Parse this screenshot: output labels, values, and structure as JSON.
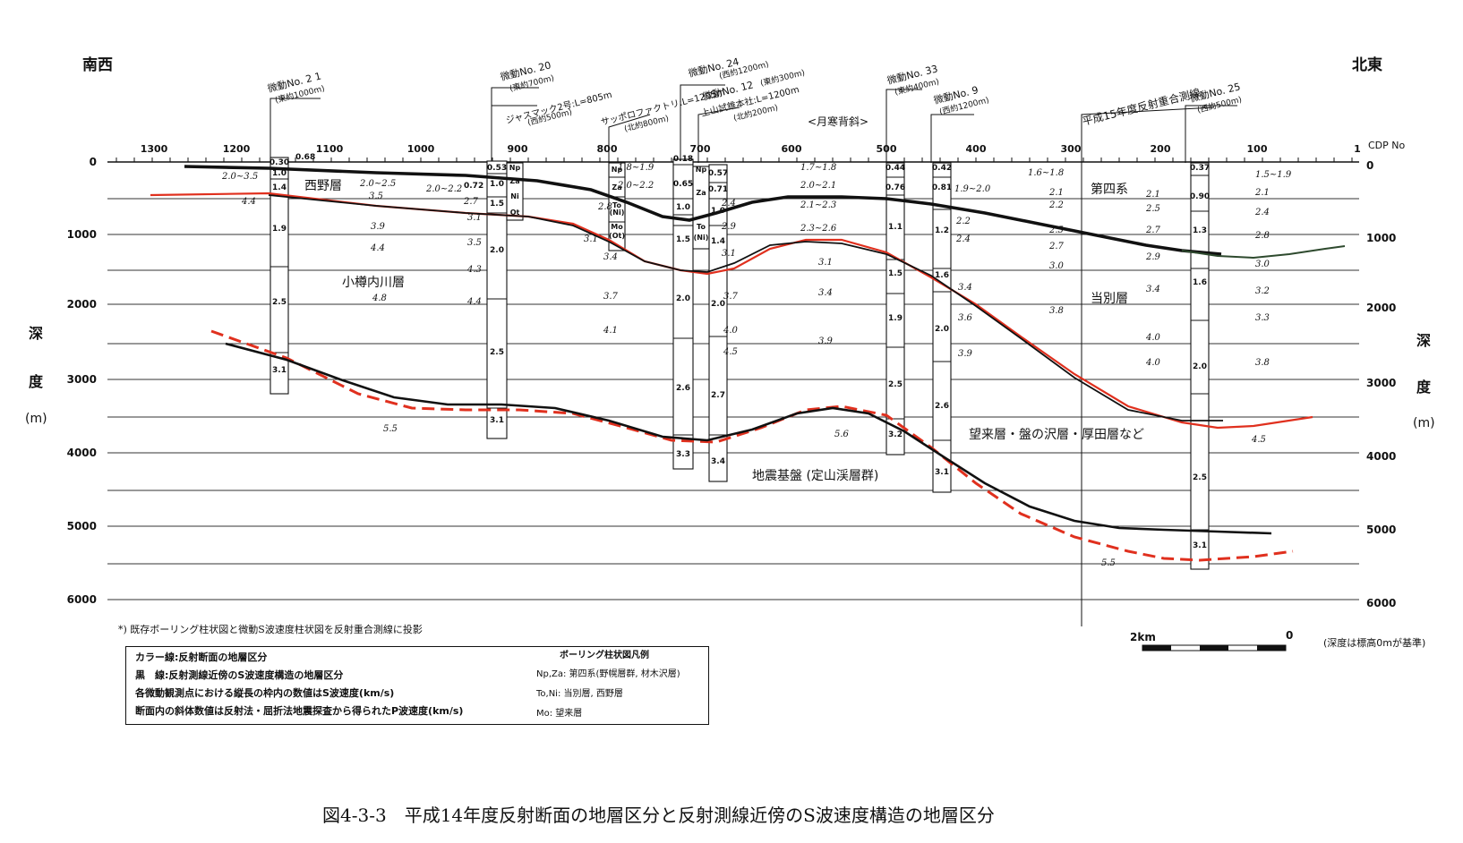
{
  "header": {
    "southwest": "南西",
    "northeast": "北東",
    "cdp_label": "CDP No"
  },
  "axes": {
    "depth_label_chars": [
      "深",
      "度"
    ],
    "depth_unit": "(m)",
    "depth_ticks": [
      "0",
      "1000",
      "2000",
      "3000",
      "4000",
      "5000",
      "6000"
    ],
    "cdp_ticks": [
      "1300",
      "1200",
      "1100",
      "1000",
      "900",
      "800",
      "700",
      "600",
      "500",
      "400",
      "300",
      "200",
      "100",
      "1"
    ]
  },
  "stations": [
    {
      "label": "微動No. 2 1",
      "sub": "(東約1000m)"
    },
    {
      "label": "微動No. 20",
      "sub": "(東約700m)"
    },
    {
      "label": "ジャスマック2号:L=805m",
      "sub": "(西約500m)"
    },
    {
      "label": "サッポロファクトリ:L=1205m",
      "sub": "(北約800m)"
    },
    {
      "label": "微動No. 24",
      "sub": "(西約1200m)"
    },
    {
      "label": "微動No. 12",
      "sub": "(東約300m)"
    },
    {
      "label": "上山試錐本社:L=1200m",
      "sub": "(北約200m)"
    },
    {
      "label": "微動No. 33",
      "sub": "(東約400m)"
    },
    {
      "label": "微動No. 9",
      "sub": "(西約1200m)"
    },
    {
      "label": "平成15年度反射重合測線",
      "sub": ""
    },
    {
      "label": "微動No. 25",
      "sub": "(西約500m)"
    }
  ],
  "anticline": "<月寒背斜>",
  "formations": {
    "nishino": "西野層",
    "otarunai": "小樽内川層",
    "quaternary": "第四系",
    "tobetsu": "当別層",
    "bourai": "望来層・盤の沢層・厚田層など",
    "basement": "地震基盤 (定山渓層群)"
  },
  "column_values": {
    "c21": [
      "0.30",
      "1.0",
      "1.4",
      "1.9",
      "2.5",
      "3.1"
    ],
    "c21_side": "0.68",
    "c20": [
      "0.53",
      "1.0",
      "1.5",
      "2.0",
      "2.5",
      "3.1"
    ],
    "c20_side": "0.72",
    "c20_strata": [
      "Np",
      "Za",
      "Ni",
      "Ot"
    ],
    "cfac_strata": [
      "Np",
      "Za",
      "To",
      "(Ni)",
      "Mo",
      "(Ot)"
    ],
    "c24": [
      "0.18",
      "0.65",
      "1.0",
      "1.5",
      "2.0",
      "2.6",
      "3.3"
    ],
    "c24_strata": [
      "To",
      "(Ni)"
    ],
    "c12": [
      "0.57",
      "0.71",
      "1.0",
      "1.4",
      "2.0",
      "2.7",
      "3.4"
    ],
    "c12_strata": [
      "Np",
      "Za"
    ],
    "c33": [
      "0.44",
      "0.76",
      "1.1",
      "1.5",
      "1.9",
      "2.5",
      "3.2"
    ],
    "c9": [
      "0.42",
      "0.81",
      "1.2",
      "1.6",
      "2.0",
      "2.6",
      "3.1"
    ],
    "c25": [
      "0.37",
      "0.90",
      "1.3",
      "1.6",
      "2.0",
      "2.5",
      "3.1"
    ]
  },
  "p_velocities": [
    "2.0~3.5",
    "4.4",
    "2.0~2.5",
    "3.5",
    "2.0~2.2",
    "2.7",
    "3.1",
    "3.9",
    "4.4",
    "3.5",
    "4.3",
    "4.8",
    "4.4",
    "1.8~1.9",
    "2.0~2.2",
    "2.8",
    "3.1",
    "3.4",
    "3.7",
    "4.1",
    "2.4",
    "2.9",
    "3.1",
    "3.7",
    "4.0",
    "4.5",
    "1.7~1.8",
    "2.0~2.1",
    "2.1~2.3",
    "2.3~2.6",
    "3.1",
    "3.4",
    "3.9",
    "1.9~2.0",
    "2.2",
    "2.4",
    "3.4",
    "3.6",
    "3.9",
    "1.6~1.8",
    "2.1",
    "2.2",
    "2.5",
    "2.7",
    "3.0",
    "3.8",
    "2.1",
    "2.5",
    "2.7",
    "2.9",
    "3.4",
    "4.0",
    "4.0",
    "1.5~1.9",
    "2.1",
    "2.4",
    "2.8",
    "3.0",
    "3.2",
    "3.3",
    "3.8",
    "4.5",
    "5.5",
    "5.6",
    "5.5"
  ],
  "note": "*) 既存ボーリング柱状図と微動S波速度柱状図を反射重合測線に投影",
  "scale": {
    "left": "2km",
    "right": "0",
    "note": "(深度は標高0mが基準)"
  },
  "legend": {
    "lines": [
      "カラー線:反射断面の地層区分",
      "黒　線:反射測線近傍のS波速度構造の地層区分",
      "各微動観測点における縦長の枠内の数値はS波速度(km/s)",
      "断面内の斜体数値は反射法・屈折法地震探査から得られたP波速度(km/s)"
    ],
    "boring_title": "ボーリング柱状図凡例",
    "boring_items": [
      "Np,Za: 第四系(野幌層群, 材木沢層)",
      "To,Ni: 当別層, 西野層",
      "Mo: 望来層"
    ]
  },
  "caption": "図4-3-3　平成14年度反射断面の地層区分と反射測線近傍のS波速度構造の地層区分",
  "colors": {
    "reflection": "#e0301e",
    "shear": "#111111",
    "quaternary_green": "#2e4a2e",
    "grid": "#333333"
  }
}
